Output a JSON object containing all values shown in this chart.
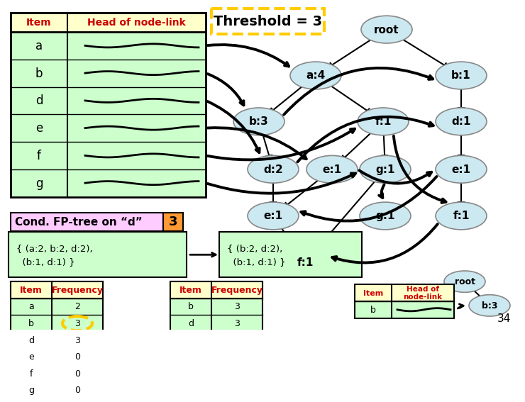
{
  "threshold_text": "Threshold = 3",
  "table_items": [
    "a",
    "b",
    "d",
    "e",
    "f",
    "g"
  ],
  "table_header": [
    "Item",
    "Head of node-link"
  ],
  "table_bg_header": "#ffffcc",
  "table_bg_rows": "#ccffcc",
  "node_color": "#cce8f0",
  "node_edge_color": "#888888",
  "cond_text1": "Cond. FP-tree on “d”",
  "cond_num": "3",
  "cond_bg": "#ffccff",
  "cond_num_bg": "#ff9933",
  "cond_set1": "{ (a:2, b:2, d:2),\n  (b:1, d:1) }",
  "cond_set2": "{ (b:2, d:2),\n  (b:1, d:1) }",
  "cond_set_bg": "#ccffcc",
  "freq_table1_items": [
    "a",
    "b",
    "d",
    "e",
    "f",
    "g"
  ],
  "freq_table1_vals": [
    "2",
    "3",
    "3",
    "0",
    "0",
    "0"
  ],
  "freq_table2_items": [
    "b",
    "d"
  ],
  "freq_table2_vals": [
    "3",
    "3"
  ],
  "page_num": "34"
}
